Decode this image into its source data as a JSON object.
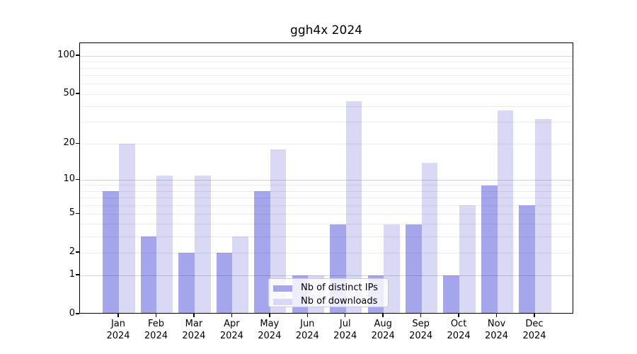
{
  "chart_data": {
    "type": "bar",
    "title": "ggh4x 2024",
    "categories": [
      "Jan",
      "Feb",
      "Mar",
      "Apr",
      "May",
      "Jun",
      "Jul",
      "Aug",
      "Sep",
      "Oct",
      "Nov",
      "Dec"
    ],
    "x_year_label": "2024",
    "series": [
      {
        "name": "Nb of distinct IPs",
        "color": "#a6a6ec",
        "values": [
          8,
          3,
          2,
          2,
          8,
          1,
          4,
          1,
          4,
          1,
          9,
          6
        ]
      },
      {
        "name": "Nb of downloads",
        "color": "#d9d9f6",
        "values": [
          20,
          11,
          11,
          3,
          18,
          1,
          44,
          4,
          14,
          6,
          37,
          32
        ]
      }
    ],
    "yscale": "log1p",
    "ylim": [
      0,
      126
    ],
    "yticks": [
      0,
      1,
      2,
      5,
      10,
      20,
      50,
      100
    ],
    "ygrid_major": [
      1,
      10,
      100
    ],
    "ygrid_minor": [
      2,
      3,
      4,
      5,
      6,
      7,
      8,
      9,
      20,
      30,
      40,
      50,
      60,
      70,
      80,
      90
    ],
    "grid": true,
    "legend_position": "lower center"
  }
}
